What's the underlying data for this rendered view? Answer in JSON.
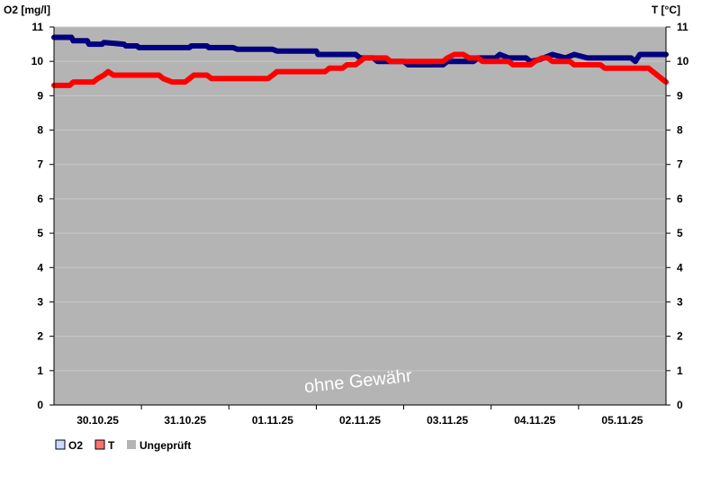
{
  "chart_data": {
    "type": "line",
    "ylabel_left": "O2 [mg/l]",
    "ylabel_right": "T [°C]",
    "ylim": [
      0,
      11
    ],
    "yticks": [
      0,
      1,
      2,
      3,
      4,
      5,
      6,
      7,
      8,
      9,
      10,
      11
    ],
    "xlim": [
      0,
      7
    ],
    "x_ticks": [
      {
        "x": 0.5,
        "label": "30.10.25"
      },
      {
        "x": 1.5,
        "label": "31.10.25"
      },
      {
        "x": 2.5,
        "label": "01.11.25"
      },
      {
        "x": 3.5,
        "label": "02.11.25"
      },
      {
        "x": 4.5,
        "label": "03.11.25"
      },
      {
        "x": 5.5,
        "label": "04.11.25"
      },
      {
        "x": 6.5,
        "label": "05.11.25"
      }
    ],
    "plot_background": "#b4b4b4",
    "grid": true,
    "watermark": "ohne Gewähr",
    "legend_position": "bottom-left",
    "legend": [
      {
        "label": "O2",
        "color": "#c8dcff"
      },
      {
        "label": "T",
        "color": "#ff7070"
      },
      {
        "label": "Ungeprüft",
        "color": "#b4b4b4"
      }
    ],
    "series": [
      {
        "name": "O2",
        "color": "#000080",
        "points": [
          [
            0.0,
            10.7
          ],
          [
            0.2,
            10.7
          ],
          [
            0.22,
            10.6
          ],
          [
            0.38,
            10.6
          ],
          [
            0.4,
            10.5
          ],
          [
            0.55,
            10.5
          ],
          [
            0.57,
            10.55
          ],
          [
            0.8,
            10.5
          ],
          [
            0.82,
            10.45
          ],
          [
            0.95,
            10.45
          ],
          [
            0.97,
            10.4
          ],
          [
            1.55,
            10.4
          ],
          [
            1.57,
            10.45
          ],
          [
            1.75,
            10.45
          ],
          [
            1.77,
            10.4
          ],
          [
            2.05,
            10.4
          ],
          [
            2.1,
            10.35
          ],
          [
            2.5,
            10.35
          ],
          [
            2.55,
            10.3
          ],
          [
            3.0,
            10.3
          ],
          [
            3.02,
            10.2
          ],
          [
            3.45,
            10.2
          ],
          [
            3.5,
            10.1
          ],
          [
            3.65,
            10.1
          ],
          [
            3.7,
            10.0
          ],
          [
            4.0,
            10.0
          ],
          [
            4.05,
            9.9
          ],
          [
            4.45,
            9.9
          ],
          [
            4.5,
            10.0
          ],
          [
            4.8,
            10.0
          ],
          [
            4.85,
            10.1
          ],
          [
            5.05,
            10.1
          ],
          [
            5.1,
            10.2
          ],
          [
            5.2,
            10.1
          ],
          [
            5.4,
            10.1
          ],
          [
            5.45,
            10.0
          ],
          [
            5.55,
            10.05
          ],
          [
            5.6,
            10.1
          ],
          [
            5.7,
            10.2
          ],
          [
            5.85,
            10.1
          ],
          [
            5.95,
            10.2
          ],
          [
            6.1,
            10.1
          ],
          [
            6.6,
            10.1
          ],
          [
            6.65,
            10.0
          ],
          [
            6.7,
            10.2
          ],
          [
            7.0,
            10.2
          ]
        ]
      },
      {
        "name": "T",
        "color": "#ff0000",
        "points": [
          [
            0.0,
            9.3
          ],
          [
            0.18,
            9.3
          ],
          [
            0.22,
            9.4
          ],
          [
            0.45,
            9.4
          ],
          [
            0.5,
            9.5
          ],
          [
            0.57,
            9.6
          ],
          [
            0.62,
            9.7
          ],
          [
            0.68,
            9.6
          ],
          [
            1.2,
            9.6
          ],
          [
            1.25,
            9.5
          ],
          [
            1.35,
            9.4
          ],
          [
            1.5,
            9.4
          ],
          [
            1.55,
            9.5
          ],
          [
            1.6,
            9.6
          ],
          [
            1.75,
            9.6
          ],
          [
            1.8,
            9.5
          ],
          [
            2.45,
            9.5
          ],
          [
            2.5,
            9.6
          ],
          [
            2.55,
            9.7
          ],
          [
            3.1,
            9.7
          ],
          [
            3.15,
            9.8
          ],
          [
            3.3,
            9.8
          ],
          [
            3.35,
            9.9
          ],
          [
            3.45,
            9.9
          ],
          [
            3.5,
            10.0
          ],
          [
            3.55,
            10.1
          ],
          [
            3.8,
            10.1
          ],
          [
            3.85,
            10.0
          ],
          [
            4.45,
            10.0
          ],
          [
            4.5,
            10.1
          ],
          [
            4.58,
            10.2
          ],
          [
            4.68,
            10.2
          ],
          [
            4.75,
            10.1
          ],
          [
            4.85,
            10.1
          ],
          [
            4.9,
            10.0
          ],
          [
            5.2,
            10.0
          ],
          [
            5.25,
            9.9
          ],
          [
            5.45,
            9.9
          ],
          [
            5.5,
            10.0
          ],
          [
            5.58,
            10.1
          ],
          [
            5.65,
            10.1
          ],
          [
            5.7,
            10.0
          ],
          [
            5.9,
            10.0
          ],
          [
            5.95,
            9.9
          ],
          [
            6.25,
            9.9
          ],
          [
            6.3,
            9.8
          ],
          [
            6.8,
            9.8
          ],
          [
            6.85,
            9.7
          ],
          [
            6.9,
            9.6
          ],
          [
            6.95,
            9.5
          ],
          [
            7.0,
            9.4
          ]
        ]
      }
    ]
  }
}
